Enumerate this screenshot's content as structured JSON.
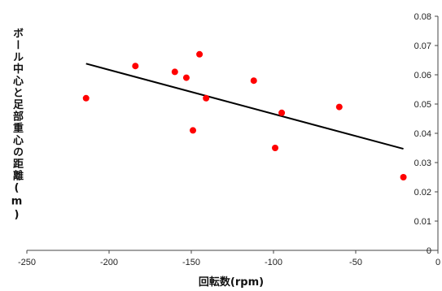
{
  "chart_data": {
    "type": "scatter",
    "title": "",
    "xlabel": "回転数(rpm)",
    "ylabel": "ボール中心と足部重心の距離(m)",
    "xlim": [
      -250,
      0
    ],
    "ylim": [
      0,
      0.08
    ],
    "x_ticks": [
      -250,
      -200,
      -150,
      -100,
      -50,
      0
    ],
    "x_tick_labels": [
      "-250",
      "-200",
      "-150",
      "-100",
      "-50",
      "0"
    ],
    "y_ticks": [
      0,
      0.01,
      0.02,
      0.03,
      0.04,
      0.05,
      0.06,
      0.07,
      0.08
    ],
    "y_tick_labels": [
      "0",
      "0.01",
      "0.02",
      "0.03",
      "0.04",
      "0.05",
      "0.06",
      "0.07",
      "0.08"
    ],
    "y_axis_side": "right",
    "grid": false,
    "legend": "none",
    "marker_color": "#ff0000",
    "trendline_color": "#000000",
    "points": [
      {
        "x": -214,
        "y": 0.052
      },
      {
        "x": -184,
        "y": 0.063
      },
      {
        "x": -160,
        "y": 0.061
      },
      {
        "x": -153,
        "y": 0.059
      },
      {
        "x": -145,
        "y": 0.067
      },
      {
        "x": -141,
        "y": 0.052
      },
      {
        "x": -149,
        "y": 0.041
      },
      {
        "x": -112,
        "y": 0.058
      },
      {
        "x": -95,
        "y": 0.047
      },
      {
        "x": -99,
        "y": 0.035
      },
      {
        "x": -60,
        "y": 0.049
      },
      {
        "x": -21,
        "y": 0.025
      }
    ],
    "trendline": {
      "x": [
        -214,
        -21
      ],
      "y": [
        0.0638,
        0.0347
      ]
    }
  }
}
